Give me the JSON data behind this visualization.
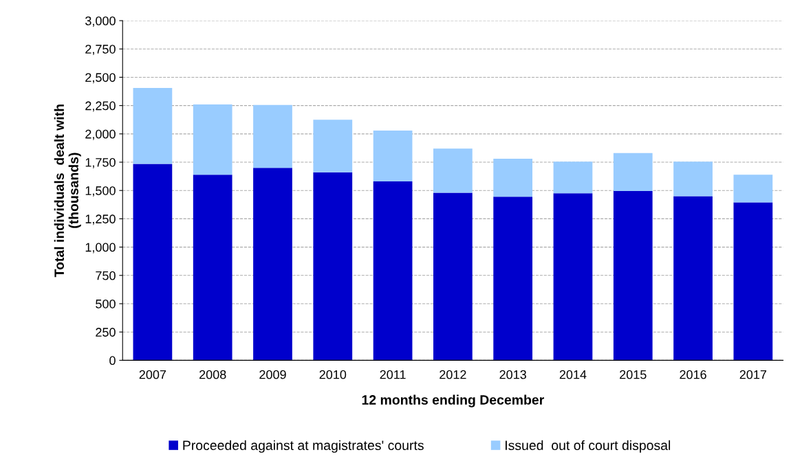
{
  "chart_data": {
    "type": "bar",
    "stacked": true,
    "xlabel": "12 months ending December",
    "ylabel": "Total individuals  dealt with\n(thousands)",
    "categories": [
      "2007",
      "2008",
      "2009",
      "2010",
      "2011",
      "2012",
      "2013",
      "2014",
      "2015",
      "2016",
      "2017"
    ],
    "series": [
      {
        "name": "Proceeded against at magistrates' courts",
        "color": "#0000cc",
        "values": [
          1735,
          1640,
          1700,
          1660,
          1580,
          1480,
          1445,
          1475,
          1495,
          1450,
          1395
        ]
      },
      {
        "name": "Issued  out of court disposal",
        "color": "#99ccff",
        "values": [
          670,
          620,
          555,
          465,
          450,
          390,
          335,
          280,
          335,
          305,
          245
        ]
      }
    ],
    "ylim": [
      0,
      3000
    ],
    "yticks": [
      0,
      {
        "value": 250,
        "label": "250"
      },
      {
        "value": 500,
        "label": "500"
      },
      {
        "value": 750,
        "label": "750"
      },
      {
        "value": 1000,
        "label": "1,000"
      },
      {
        "value": 1250,
        "label": "1,250"
      },
      {
        "value": 1500,
        "label": "1,500"
      },
      {
        "value": 1750,
        "label": "1,750"
      },
      {
        "value": 2000,
        "label": "2,000"
      },
      {
        "value": 2250,
        "label": "2,250"
      },
      {
        "value": 2500,
        "label": "2,500"
      },
      {
        "value": 2750,
        "label": "2,750"
      },
      {
        "value": 3000,
        "label": "3,000"
      }
    ],
    "grid": "y",
    "legend": "bottom"
  }
}
